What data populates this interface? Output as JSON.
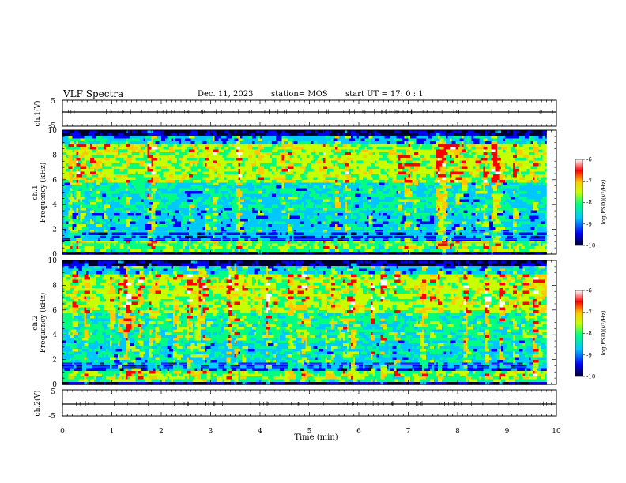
{
  "header": {
    "title": "VLF Spectra",
    "date": "Dec. 11, 2023",
    "station": "station= MOS",
    "start_ut": "start UT =  17: 0  : 1"
  },
  "chart_data": [
    {
      "id": "ch1-waveform",
      "type": "line",
      "ylabel": "ch.1(V)",
      "ylim": [
        -5,
        5
      ],
      "yticks": [
        5,
        -5
      ],
      "xlim": [
        0,
        10
      ],
      "baseline": 0
    },
    {
      "id": "ch1-spectrogram",
      "type": "heatmap",
      "ylabel_top": "ch.1",
      "ylabel": "Frequency (kHz)",
      "ylim": [
        0,
        10
      ],
      "yticks": [
        0,
        2,
        4,
        6,
        8,
        10
      ],
      "xlim": [
        0,
        9.83
      ],
      "colorbar": {
        "label": "log(PSD)(V²/Hz)",
        "range": [
          -10,
          -6
        ],
        "ticks": [
          "-6",
          "-7",
          "-8",
          "-9",
          "-10"
        ]
      }
    },
    {
      "id": "ch2-spectrogram",
      "type": "heatmap",
      "ylabel_top": "ch.2",
      "ylabel": "Frequency (kHz)",
      "ylim": [
        0,
        10
      ],
      "yticks": [
        0,
        2,
        4,
        6,
        8,
        10
      ],
      "xlim": [
        0,
        9.83
      ],
      "colorbar": {
        "label": "log(PSD)(V²/Hz)",
        "range": [
          -10,
          -6
        ],
        "ticks": [
          "-6",
          "-7",
          "-8",
          "-9",
          "-10"
        ]
      }
    },
    {
      "id": "ch2-waveform",
      "type": "line",
      "ylabel": "ch.2(V)",
      "ylim": [
        -5,
        5
      ],
      "yticks": [
        5,
        -5
      ],
      "xlim": [
        0,
        10
      ],
      "baseline": 0
    }
  ],
  "x_axis": {
    "label": "Time (min)",
    "ticks": [
      "0",
      "1",
      "2",
      "3",
      "4",
      "5",
      "6",
      "7",
      "8",
      "9",
      "10"
    ],
    "range": [
      0,
      10
    ]
  },
  "colormap": [
    "#000030",
    "#0000ff",
    "#00c8ff",
    "#00ff80",
    "#c8ff00",
    "#ffc800",
    "#ff0000",
    "#ffffff"
  ]
}
